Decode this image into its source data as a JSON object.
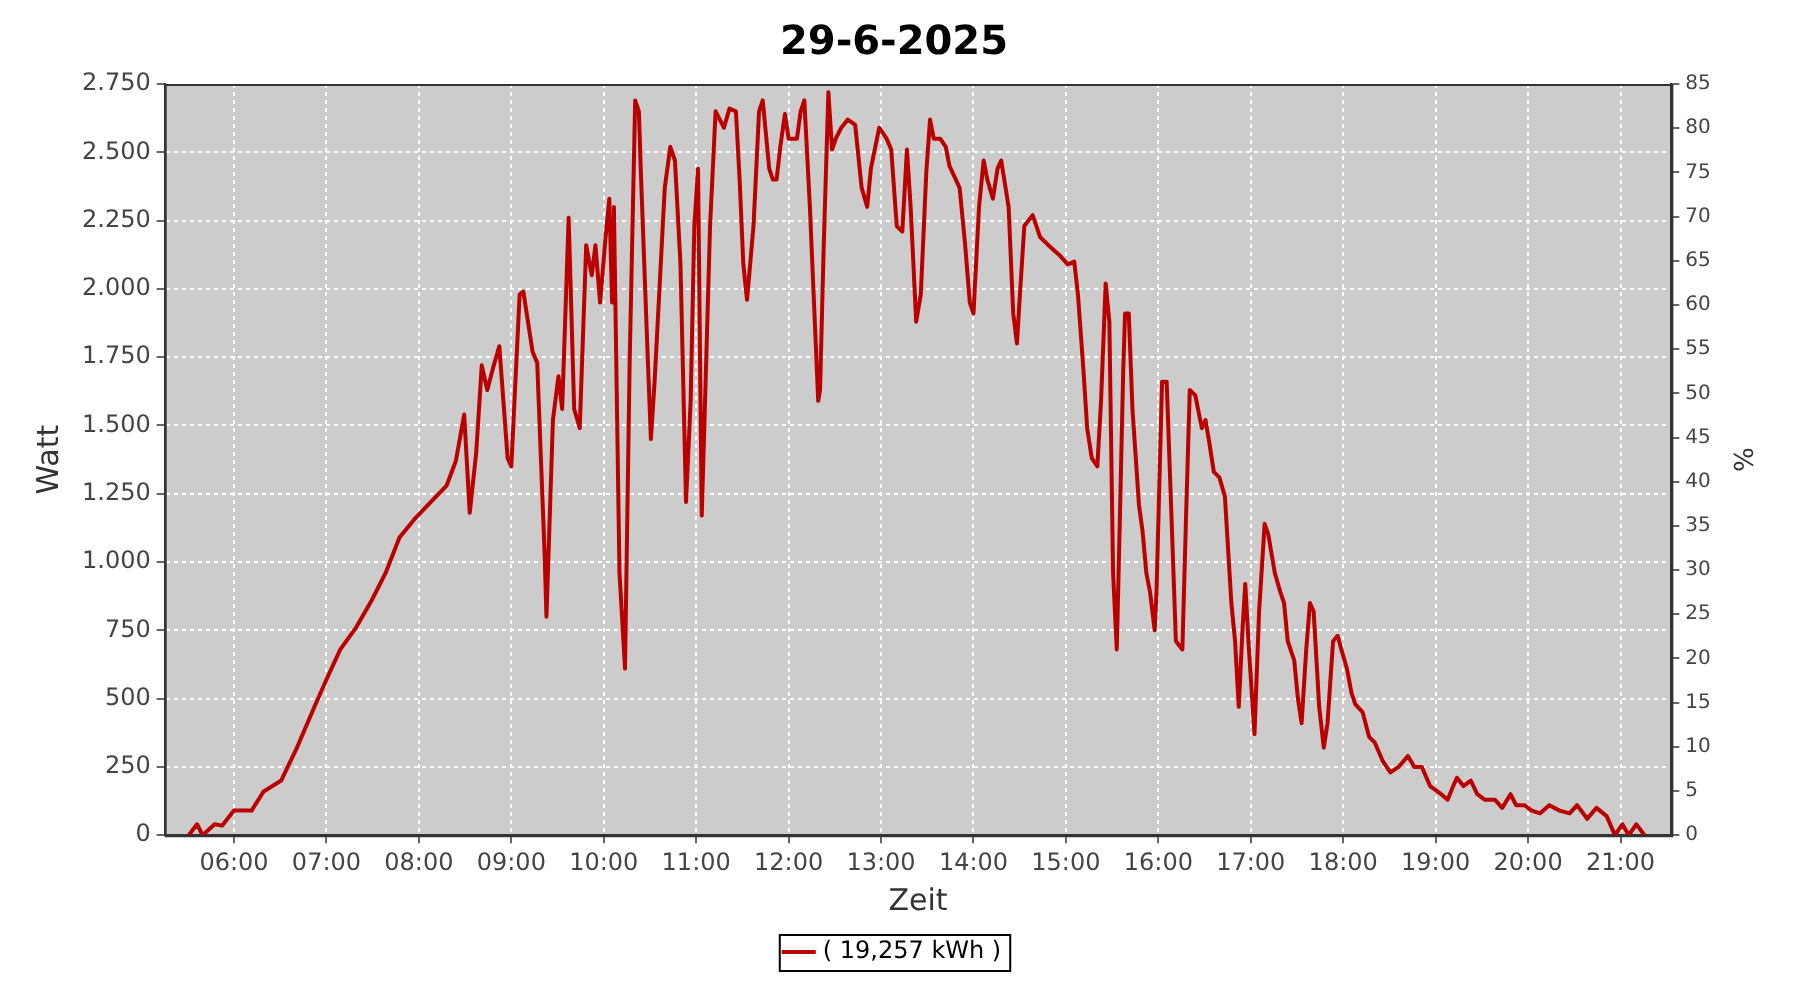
{
  "chart_data": {
    "type": "line",
    "title": "29-6-2025",
    "xlabel": "Zeit",
    "ylabel": "Watt",
    "y2label": "%",
    "xlim": [
      5.25,
      21.55
    ],
    "xticks": [
      {
        "value": 6,
        "label": "06:00"
      },
      {
        "value": 7,
        "label": "07:00"
      },
      {
        "value": 8,
        "label": "08:00"
      },
      {
        "value": 9,
        "label": "09:00"
      },
      {
        "value": 10,
        "label": "10:00"
      },
      {
        "value": 11,
        "label": "11:00"
      },
      {
        "value": 12,
        "label": "12:00"
      },
      {
        "value": 13,
        "label": "13:00"
      },
      {
        "value": 14,
        "label": "14:00"
      },
      {
        "value": 15,
        "label": "15:00"
      },
      {
        "value": 16,
        "label": "16:00"
      },
      {
        "value": 17,
        "label": "17:00"
      },
      {
        "value": 18,
        "label": "18:00"
      },
      {
        "value": 19,
        "label": "19:00"
      },
      {
        "value": 20,
        "label": "20:00"
      },
      {
        "value": 21,
        "label": "21:00"
      }
    ],
    "ylim": [
      0,
      2750
    ],
    "yticks": [
      0,
      250,
      500,
      750,
      {
        "value": 1000,
        "label": "1.000"
      },
      {
        "value": 1250,
        "label": "1.250"
      },
      {
        "value": 1500,
        "label": "1.500"
      },
      {
        "value": 1750,
        "label": "1.750"
      },
      {
        "value": 2000,
        "label": "2.000"
      },
      {
        "value": 2250,
        "label": "2.250"
      },
      {
        "value": 2500,
        "label": "2.500"
      },
      {
        "value": 2750,
        "label": "2.750"
      }
    ],
    "y2lim": [
      0,
      85
    ],
    "y2ticks": [
      0,
      5,
      10,
      15,
      20,
      25,
      30,
      35,
      40,
      45,
      50,
      55,
      60,
      65,
      70,
      75,
      80,
      85
    ],
    "grid": true,
    "legend": "bottom",
    "line_style": "solid",
    "series": [
      {
        "name": "( 19,257 kWh )",
        "color": "#bb0000",
        "x": [
          5.51,
          5.6,
          5.66,
          5.79,
          5.87,
          6.0,
          6.19,
          6.32,
          6.51,
          6.68,
          6.87,
          7.0,
          7.15,
          7.32,
          7.49,
          7.64,
          7.79,
          7.96,
          8.13,
          8.3,
          8.4,
          8.49,
          8.55,
          8.62,
          8.68,
          8.74,
          8.81,
          8.87,
          8.96,
          9.0,
          9.09,
          9.13,
          9.23,
          9.28,
          9.36,
          9.38,
          9.45,
          9.51,
          9.55,
          9.62,
          9.68,
          9.74,
          9.81,
          9.87,
          9.91,
          9.96,
          10.02,
          10.06,
          10.09,
          10.11,
          10.17,
          10.23,
          10.28,
          10.34,
          10.38,
          10.4,
          10.47,
          10.51,
          10.55,
          10.66,
          10.72,
          10.77,
          10.83,
          10.85,
          10.89,
          10.94,
          10.98,
          11.02,
          11.06,
          11.09,
          11.15,
          11.21,
          11.3,
          11.36,
          11.43,
          11.47,
          11.51,
          11.55,
          11.62,
          11.68,
          11.72,
          11.79,
          11.83,
          11.87,
          11.91,
          11.96,
          12.0,
          12.09,
          12.13,
          12.17,
          12.23,
          12.32,
          12.34,
          12.38,
          12.43,
          12.47,
          12.51,
          12.57,
          12.64,
          12.72,
          12.79,
          12.85,
          12.89,
          12.98,
          13.06,
          13.11,
          13.17,
          13.23,
          13.28,
          13.32,
          13.38,
          13.43,
          13.49,
          13.53,
          13.57,
          13.64,
          13.7,
          13.74,
          13.85,
          13.91,
          13.96,
          14.0,
          14.06,
          14.11,
          14.15,
          14.21,
          14.26,
          14.3,
          14.38,
          14.43,
          14.47,
          14.51,
          14.55,
          14.64,
          14.72,
          14.81,
          14.94,
          15.02,
          15.09,
          15.13,
          15.19,
          15.23,
          15.28,
          15.34,
          15.38,
          15.43,
          15.47,
          15.51,
          15.55,
          15.57,
          15.62,
          15.64,
          15.68,
          15.72,
          15.79,
          15.83,
          15.87,
          15.91,
          15.96,
          15.98,
          16.04,
          16.09,
          16.13,
          16.19,
          16.26,
          16.3,
          16.34,
          16.4,
          16.47,
          16.51,
          16.55,
          16.6,
          16.66,
          16.72,
          16.79,
          16.83,
          16.87,
          16.91,
          16.94,
          16.98,
          17.04,
          17.09,
          17.15,
          17.19,
          17.26,
          17.32,
          17.36,
          17.4,
          17.47,
          17.51,
          17.55,
          17.6,
          17.64,
          17.68,
          17.74,
          17.79,
          17.83,
          17.89,
          17.94,
          17.98,
          18.04,
          18.09,
          18.13,
          18.21,
          18.28,
          18.34,
          18.43,
          18.51,
          18.6,
          18.7,
          18.77,
          18.85,
          18.94,
          19.06,
          19.13,
          19.19,
          19.23,
          19.3,
          19.38,
          19.45,
          19.53,
          19.64,
          19.72,
          19.81,
          19.87,
          19.96,
          20.04,
          20.13,
          20.23,
          20.34,
          20.45,
          20.53,
          20.64,
          20.74,
          20.85,
          20.94,
          21.02,
          21.09,
          21.17,
          21.26
        ],
        "values": [
          0,
          40,
          0,
          40,
          35,
          90,
          90,
          160,
          200,
          320,
          470,
          570,
          680,
          760,
          860,
          960,
          1090,
          1160,
          1220,
          1280,
          1370,
          1540,
          1180,
          1400,
          1720,
          1630,
          1720,
          1790,
          1380,
          1350,
          1980,
          1990,
          1770,
          1730,
          1030,
          800,
          1520,
          1680,
          1560,
          2260,
          1560,
          1490,
          2160,
          2050,
          2160,
          1950,
          2190,
          2330,
          1950,
          2300,
          960,
          610,
          1730,
          2690,
          2650,
          2440,
          1800,
          1450,
          1660,
          2370,
          2520,
          2470,
          2090,
          1800,
          1220,
          1590,
          2230,
          2440,
          1170,
          1520,
          2230,
          2650,
          2590,
          2660,
          2650,
          2400,
          2090,
          1960,
          2230,
          2650,
          2690,
          2440,
          2400,
          2400,
          2520,
          2640,
          2550,
          2550,
          2650,
          2690,
          2300,
          1590,
          1630,
          2160,
          2720,
          2510,
          2550,
          2590,
          2620,
          2600,
          2370,
          2300,
          2440,
          2590,
          2550,
          2510,
          2230,
          2210,
          2510,
          2300,
          1880,
          1980,
          2430,
          2620,
          2550,
          2550,
          2520,
          2450,
          2370,
          2160,
          1950,
          1910,
          2300,
          2470,
          2400,
          2330,
          2440,
          2470,
          2300,
          1910,
          1800,
          2020,
          2230,
          2270,
          2190,
          2160,
          2120,
          2090,
          2100,
          1980,
          1700,
          1490,
          1380,
          1350,
          1590,
          2020,
          1880,
          960,
          680,
          960,
          1700,
          1910,
          1910,
          1560,
          1210,
          1110,
          960,
          890,
          750,
          890,
          1660,
          1660,
          1280,
          710,
          680,
          1170,
          1630,
          1610,
          1490,
          1520,
          1440,
          1330,
          1310,
          1240,
          850,
          710,
          470,
          750,
          920,
          680,
          370,
          820,
          1140,
          1100,
          960,
          890,
          850,
          710,
          640,
          500,
          410,
          680,
          850,
          820,
          470,
          320,
          410,
          710,
          730,
          680,
          610,
          520,
          480,
          450,
          360,
          340,
          270,
          230,
          250,
          290,
          250,
          250,
          180,
          150,
          130,
          180,
          210,
          180,
          200,
          150,
          130,
          130,
          100,
          150,
          110,
          110,
          90,
          80,
          110,
          90,
          80,
          110,
          60,
          100,
          70,
          0,
          40,
          0,
          40,
          0
        ]
      }
    ]
  }
}
